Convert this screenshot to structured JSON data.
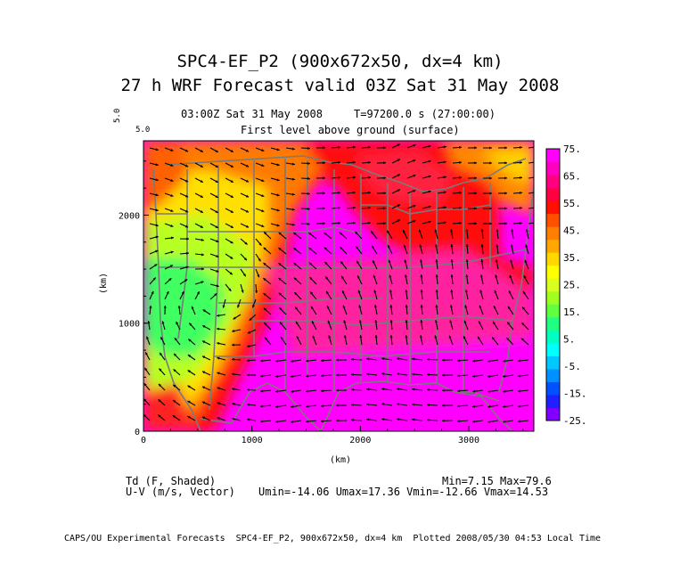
{
  "header": {
    "title": "SPC4-EF_P2 (900x672x50, dx=4 km)",
    "subtitle": "27 h WRF Forecast valid 03Z Sat 31 May 2008",
    "valid_time": "03:00Z Sat 31 May 2008",
    "time_info": "T=97200.0 s (27:00:00)",
    "level": "First level above ground (surface)",
    "vector_ref": "5.0",
    "vector_ref_small": "5.0"
  },
  "stats": {
    "shaded_field": "Td (F, Shaded)",
    "min_max": "Min=7.15 Max=79.6",
    "vector_field": "U-V (m/s, Vector)",
    "vector_stats": "Umin=-14.06 Umax=17.36 Vmin=-12.66 Vmax=14.53"
  },
  "footer": {
    "credit": "CAPS/OU Experimental Forecasts  SPC4-EF_P2, 900x672x50, dx=4 km  Plotted 2008/05/30 04:53 Local Time"
  },
  "chart_data": {
    "type": "heatmap",
    "xlabel": "(km)",
    "ylabel": "(km)",
    "xlim": [
      0,
      3600
    ],
    "ylim": [
      0,
      2688
    ],
    "x_ticks": [
      "0",
      "1000",
      "2000",
      "3000"
    ],
    "x_tick_values": [
      0,
      1000,
      2000,
      3000
    ],
    "y_ticks": [
      "0",
      "1000",
      "2000"
    ],
    "y_tick_values": [
      0,
      1000,
      2000
    ],
    "colorbar": {
      "labels": [
        "75.",
        "65.",
        "55.",
        "45.",
        "35.",
        "25.",
        "15.",
        "5.",
        "-5.",
        "-15.",
        "-25."
      ],
      "levels": [
        -25,
        -20,
        -15,
        -10,
        -5,
        0,
        5,
        10,
        15,
        20,
        25,
        30,
        35,
        40,
        45,
        50,
        55,
        60,
        65,
        70,
        75,
        80
      ],
      "colors": [
        "#8000ff",
        "#2020ff",
        "#0050ff",
        "#0090ff",
        "#00c8ff",
        "#00ffff",
        "#00ffc0",
        "#20ff80",
        "#60ff40",
        "#a0ff20",
        "#d8ff20",
        "#ffff00",
        "#ffd800",
        "#ffa800",
        "#ff8000",
        "#ff5000",
        "#ff1000",
        "#ff0040",
        "#ff0080",
        "#ff00c0",
        "#ff00ff"
      ]
    },
    "td_min": 7.15,
    "td_max": 79.6,
    "u_min": -14.06,
    "u_max": 17.36,
    "v_min": -12.66,
    "v_max": 14.53
  },
  "colors": {
    "state_lines": "#7a7a7a",
    "vectors": "#000000"
  }
}
